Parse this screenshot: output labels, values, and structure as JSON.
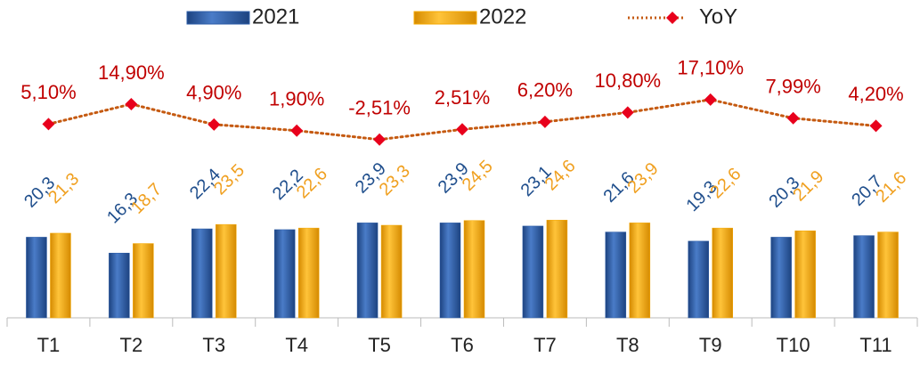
{
  "chart_data": {
    "type": "bar",
    "categories": [
      "T1",
      "T2",
      "T3",
      "T4",
      "T5",
      "T6",
      "T7",
      "T8",
      "T9",
      "T10",
      "T11"
    ],
    "ylim": [
      0,
      80
    ],
    "y2lim": [
      -90,
      66
    ],
    "series": [
      {
        "name": "2021",
        "color": "#2e5ea8",
        "values": [
          20.3,
          16.3,
          22.4,
          22.2,
          23.9,
          23.9,
          23.1,
          21.6,
          19.3,
          20.3,
          20.7
        ],
        "value_labels": [
          "20,3",
          "16,3",
          "22,4",
          "22,2",
          "23,9",
          "23,9",
          "23,1",
          "21,6",
          "19,3",
          "20,3",
          "20,7"
        ],
        "label_color": "#1f4e8c"
      },
      {
        "name": "2022",
        "color": "#f5a800",
        "values": [
          21.3,
          18.7,
          23.5,
          22.6,
          23.3,
          24.5,
          24.6,
          23.9,
          22.6,
          21.9,
          21.6
        ],
        "value_labels": [
          "21,3",
          "18,7",
          "23,5",
          "22,6",
          "23,3",
          "24,5",
          "24,6",
          "23,9",
          "22,6",
          "21,9",
          "21,6"
        ],
        "label_color": "#f0a020"
      },
      {
        "name": "YoY",
        "type": "line",
        "axis": "y2",
        "color": "#c55a11",
        "marker_color": "#e8001c",
        "label_color": "#c00000",
        "values": [
          5.1,
          14.9,
          4.9,
          1.9,
          -2.51,
          2.51,
          6.2,
          10.8,
          17.1,
          7.99,
          4.2
        ],
        "value_labels": [
          "5,10%",
          "14,90%",
          "4,90%",
          "1,90%",
          "-2,51%",
          "2,51%",
          "6,20%",
          "10,80%",
          "17,10%",
          "7,99%",
          "4,20%"
        ]
      }
    ]
  }
}
